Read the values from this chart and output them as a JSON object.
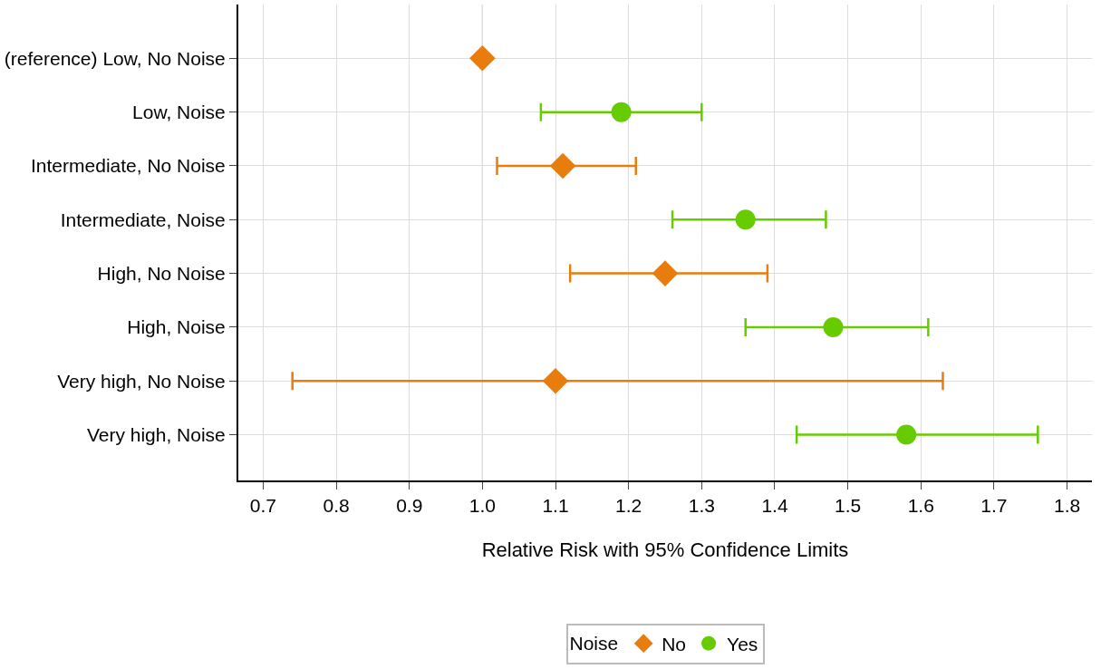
{
  "chart_data": {
    "type": "scatter",
    "orientation": "horizontal",
    "xlabel": "Relative Risk with 95% Confidence Limits",
    "legend_title": "Noise",
    "categories": [
      "(reference) Low, No Noise",
      "Low, Noise",
      "Intermediate, No Noise",
      "Intermediate, Noise",
      "High, No Noise",
      "High, Noise",
      "Very high, No Noise",
      "Very high, Noise"
    ],
    "series": [
      {
        "name": "No",
        "color": "#e87d0e",
        "marker": "diamond",
        "values": [
          1.0,
          null,
          1.11,
          null,
          1.25,
          null,
          1.1,
          null
        ],
        "errors": [
          null,
          null,
          [
            1.02,
            1.21
          ],
          null,
          [
            1.12,
            1.39
          ],
          null,
          [
            0.74,
            1.63
          ],
          null
        ]
      },
      {
        "name": "Yes",
        "color": "#66cc00",
        "marker": "circle",
        "values": [
          null,
          1.19,
          null,
          1.36,
          null,
          1.48,
          null,
          1.58
        ],
        "errors": [
          null,
          [
            1.08,
            1.3
          ],
          null,
          [
            1.26,
            1.47
          ],
          null,
          [
            1.36,
            1.61
          ],
          null,
          [
            1.43,
            1.76
          ]
        ]
      }
    ],
    "xlim": [
      0.666,
      1.834
    ],
    "xticks": [
      0.7,
      0.8,
      0.9,
      {
        "value": 1.0,
        "label": "1.0"
      },
      1.1,
      1.2,
      1.3,
      1.4,
      1.5,
      1.6,
      1.7,
      1.8
    ],
    "ref_lines": [
      {
        "axis": "x",
        "value": 1.0,
        "label": null,
        "color": "#888888"
      }
    ],
    "grid": true,
    "legend": "bottom"
  }
}
